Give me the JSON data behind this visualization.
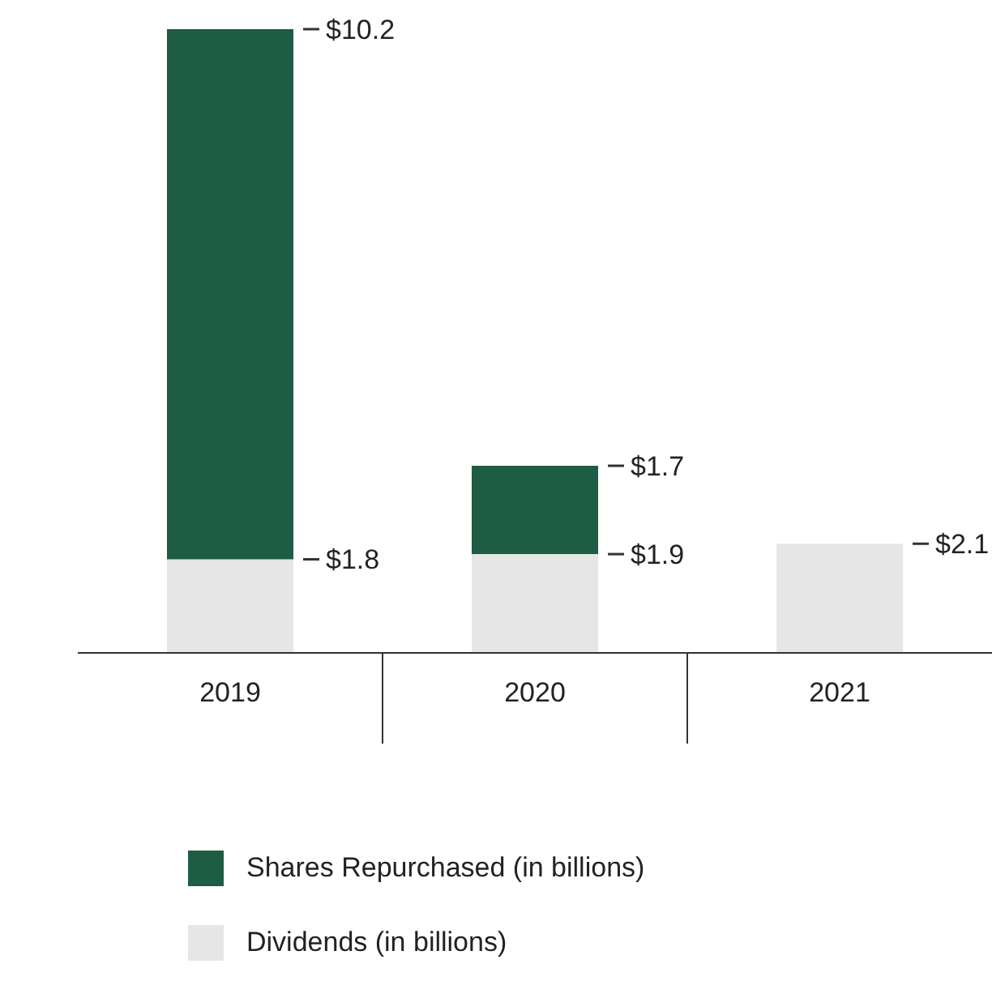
{
  "chart_data": {
    "type": "bar",
    "stacked": true,
    "categories": [
      "2019",
      "2020",
      "2021"
    ],
    "series": [
      {
        "name": "Dividends (in billions)",
        "color": "#e6e6e6",
        "values": [
          1.8,
          1.9,
          2.1
        ],
        "value_labels": [
          "$1.8",
          "$1.9",
          "$2.1"
        ]
      },
      {
        "name": "Shares Repurchased (in billions)",
        "color": "#1e5c43",
        "values": [
          10.2,
          1.7,
          null
        ],
        "value_labels": [
          "$10.2",
          "$1.7",
          null
        ]
      }
    ],
    "legend": "bottom",
    "grid": false,
    "tick_labels": "x"
  }
}
